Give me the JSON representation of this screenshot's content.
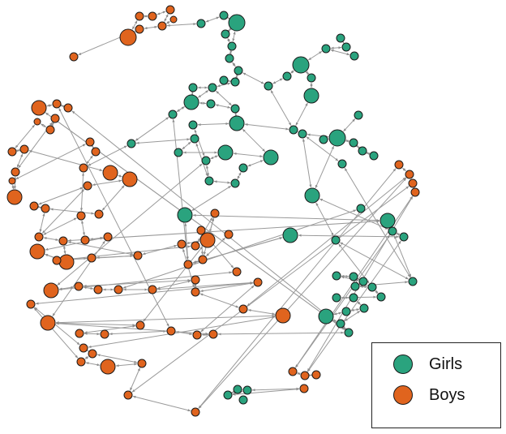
{
  "colors": {
    "girls": "#2aa37e",
    "boys": "#e0641e",
    "edge": "#9a9a9a",
    "outline": "#1a1a1a"
  },
  "legend": {
    "items": [
      {
        "label": "Girls",
        "color": "#2aa37e"
      },
      {
        "label": "Boys",
        "color": "#e0641e"
      }
    ]
  }
}
